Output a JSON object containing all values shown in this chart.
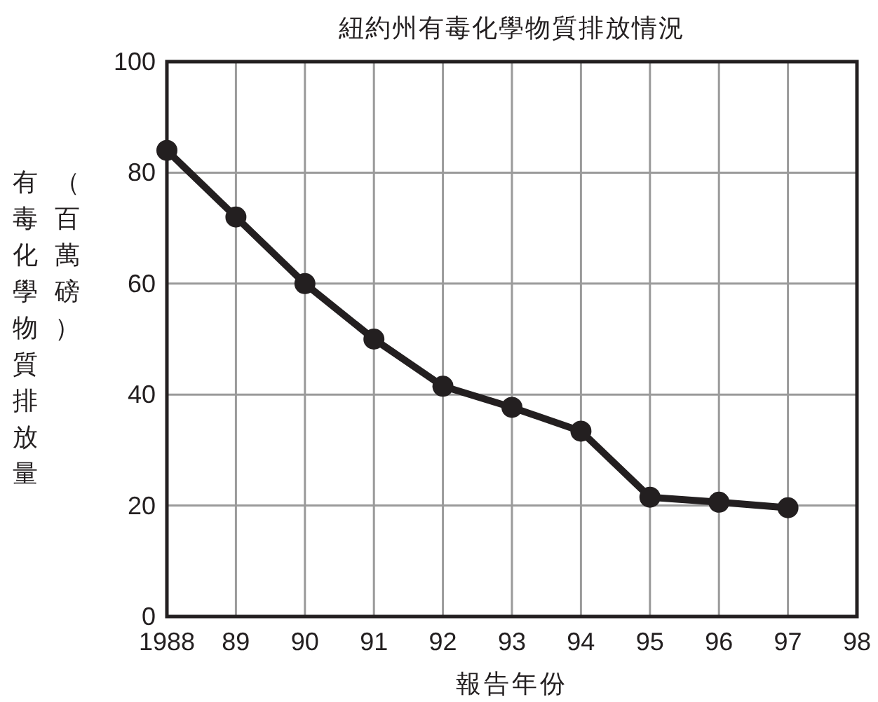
{
  "chart_data": {
    "type": "line",
    "title": "紐約州有毒化學物質排放情況",
    "xlabel": "報告年份",
    "ylabel": "有毒化學物質排放量（百萬磅）",
    "x": [
      1988,
      1989,
      1990,
      1991,
      1992,
      1993,
      1994,
      1995,
      1996,
      1997
    ],
    "series": [
      {
        "color": "#231f20",
        "values": [
          84,
          72,
          60,
          50,
          41.5,
          37.7,
          33.4,
          21.5,
          20.6,
          19.6
        ]
      }
    ],
    "xlim": [
      1988,
      1998
    ],
    "xticks": [
      {
        "value": 1988,
        "label": "1988"
      },
      {
        "value": 1989,
        "label": "89"
      },
      {
        "value": 1990,
        "label": "90"
      },
      {
        "value": 1991,
        "label": "91"
      },
      {
        "value": 1992,
        "label": "92"
      },
      {
        "value": 1993,
        "label": "93"
      },
      {
        "value": 1994,
        "label": "94"
      },
      {
        "value": 1995,
        "label": "95"
      },
      {
        "value": 1996,
        "label": "96"
      },
      {
        "value": 1997,
        "label": "97"
      },
      {
        "value": 1998,
        "label": "98"
      }
    ],
    "ylim": [
      0,
      100
    ],
    "yticks": [
      0,
      20,
      40,
      60,
      80,
      100
    ],
    "grid": true,
    "marker": "circle",
    "line_style": "solid"
  }
}
